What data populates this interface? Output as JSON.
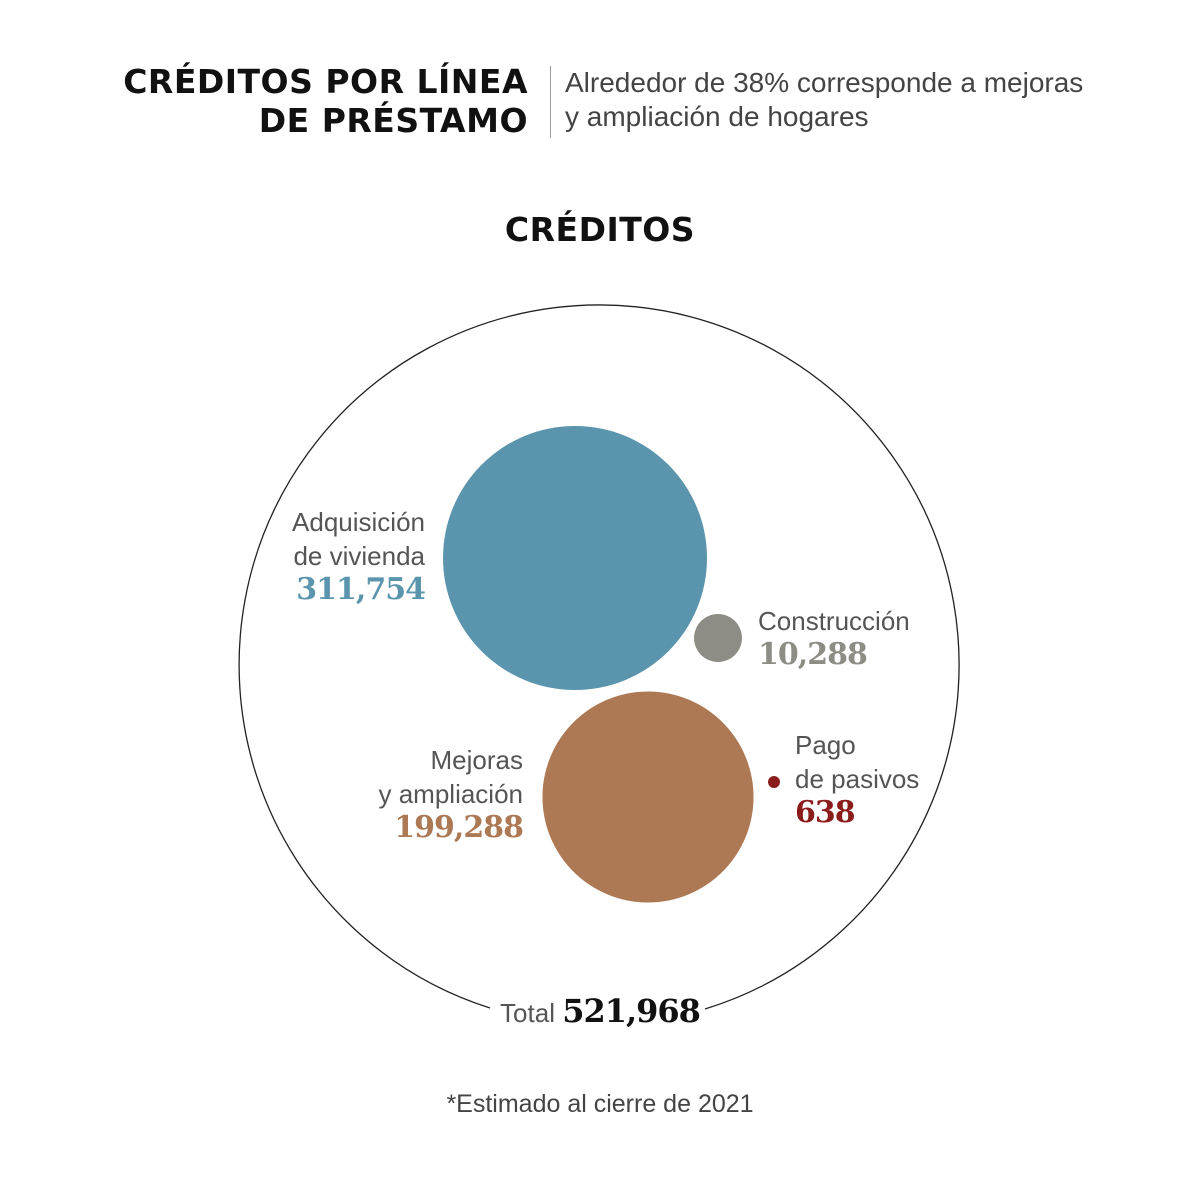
{
  "header": {
    "title_line1": "CRÉDITOS POR LÍNEA",
    "title_line2": "DE PRÉSTAMO",
    "subtitle_line1": "Alrededor de 38% corresponde a mejoras",
    "subtitle_line2": "y ampliación de hogares"
  },
  "chart_data": {
    "type": "scatter",
    "subtype": "bubble",
    "title": "CRÉDITOS",
    "series": [
      {
        "name": "Adquisición de vivienda",
        "label_line1": "Adquisición",
        "label_line2": "de vivienda",
        "value": 311754,
        "value_label": "311,754",
        "color": "#5b95ad"
      },
      {
        "name": "Construcción",
        "label_line1": "Construcción",
        "value": 10288,
        "value_label": "10,288",
        "color": "#8d8d85"
      },
      {
        "name": "Mejoras y ampliación",
        "label_line1": "Mejoras",
        "label_line2": "y ampliación",
        "value": 199288,
        "value_label": "199,288",
        "color": "#ad7954"
      },
      {
        "name": "Pago de pasivos",
        "label_line1": "Pago",
        "label_line2": "de pasivos",
        "value": 638,
        "value_label": "638",
        "color": "#8b1c1c"
      }
    ],
    "total_label": "Total",
    "total": 521968,
    "total_value_label": "521,968",
    "footnote": "*Estimado al cierre de 2021"
  }
}
